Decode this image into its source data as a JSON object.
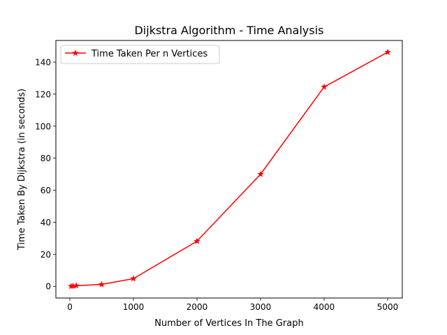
{
  "chart_data": {
    "type": "line",
    "title": "Dijkstra Algorithm - Time Analysis",
    "xlabel": "Number of Vertices In The Graph",
    "ylabel": "Time Taken By Dijkstra (in seconds)",
    "xlim": [
      -220,
      5230
    ],
    "ylim": [
      -7.3,
      153.5
    ],
    "xticks": [
      0,
      1000,
      2000,
      3000,
      4000,
      5000
    ],
    "yticks": [
      0,
      20,
      40,
      60,
      80,
      100,
      120,
      140
    ],
    "grid": false,
    "legend_position": "top-left",
    "series": [
      {
        "name": "Time Taken Per n Vertices",
        "color": "#ff0000",
        "marker": "star",
        "x": [
          20,
          50,
          100,
          500,
          1000,
          2000,
          3000,
          4000,
          5000
        ],
        "y": [
          0.05,
          0.2,
          0.4,
          1.2,
          4.8,
          28.2,
          70.0,
          124.5,
          146.2
        ]
      }
    ]
  }
}
